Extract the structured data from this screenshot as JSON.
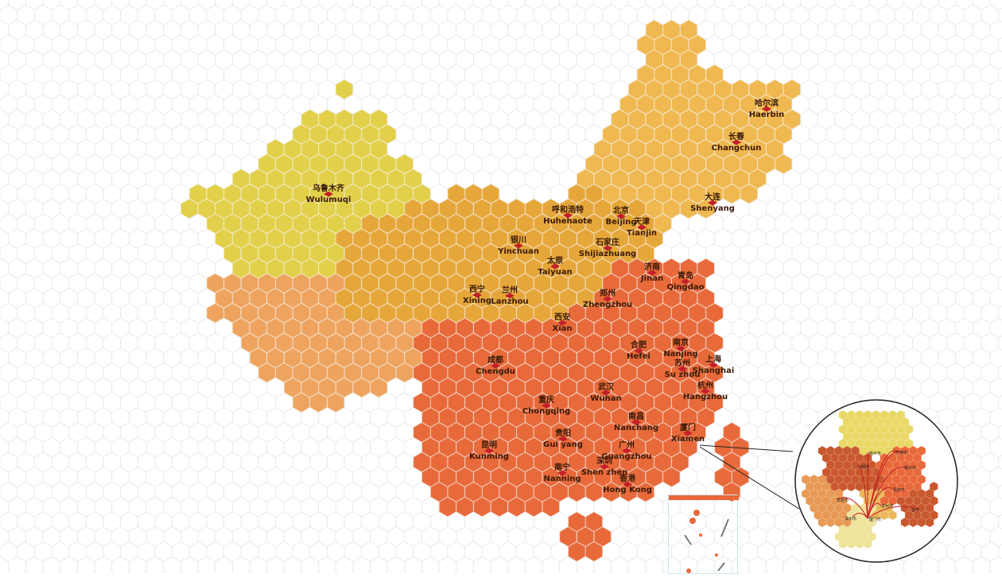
{
  "map": {
    "colors": {
      "xinjiang": "#e2d04a",
      "west": "#eea45e",
      "north": "#e6a73a",
      "northeast": "#f0b850",
      "south": "#e86a3a",
      "marker": "#c21f2a",
      "grid": "#e6e6e6"
    },
    "cities": [
      {
        "zh": "乌鲁木齐",
        "en": "Wulumuqi"
      },
      {
        "zh": "哈尔滨",
        "en": "Haerbin"
      },
      {
        "zh": "长春",
        "en": "Changchun"
      },
      {
        "zh": "大连",
        "en": "Shenyang"
      },
      {
        "zh": "呼和浩特",
        "en": "Huhehaote"
      },
      {
        "zh": "北京",
        "en": "Beijing"
      },
      {
        "zh": "天津",
        "en": "Tianjin"
      },
      {
        "zh": "银川",
        "en": "Yinchuan"
      },
      {
        "zh": "石家庄",
        "en": "Shijiazhuang"
      },
      {
        "zh": "太原",
        "en": "Taiyuan"
      },
      {
        "zh": "济南",
        "en": "Jinan"
      },
      {
        "zh": "青岛",
        "en": "Qingdao"
      },
      {
        "zh": "西宁",
        "en": "Xining"
      },
      {
        "zh": "兰州",
        "en": "Lanzhou"
      },
      {
        "zh": "郑州",
        "en": "Zhengzhou"
      },
      {
        "zh": "西安",
        "en": "Xian"
      },
      {
        "zh": "合肥",
        "en": "Hefei"
      },
      {
        "zh": "南京",
        "en": "Nanjing"
      },
      {
        "zh": "苏州",
        "en": "Su zhou"
      },
      {
        "zh": "上海",
        "en": "Shanghai"
      },
      {
        "zh": "成都",
        "en": "Chengdu"
      },
      {
        "zh": "杭州",
        "en": "Hangzhou"
      },
      {
        "zh": "武汉",
        "en": "Wuhan"
      },
      {
        "zh": "重庆",
        "en": "Chongqing"
      },
      {
        "zh": "南昌",
        "en": "Nanchang"
      },
      {
        "zh": "厦门",
        "en": "Xiamen"
      },
      {
        "zh": "贵阳",
        "en": "Gui yang"
      },
      {
        "zh": "昆明",
        "en": "Kunming"
      },
      {
        "zh": "广州",
        "en": "Guangzhou"
      },
      {
        "zh": "深圳",
        "en": "Shen zhen"
      },
      {
        "zh": "南宁",
        "en": "Nanning"
      },
      {
        "zh": "香港",
        "en": "Hong Kong"
      }
    ],
    "inset": {
      "labels": [
        "厦门市",
        "福州市",
        "台湾",
        "宁德市",
        "三明市",
        "莆田市",
        "泉州市",
        "漳州市",
        "龙岩市",
        "南平市"
      ]
    }
  }
}
